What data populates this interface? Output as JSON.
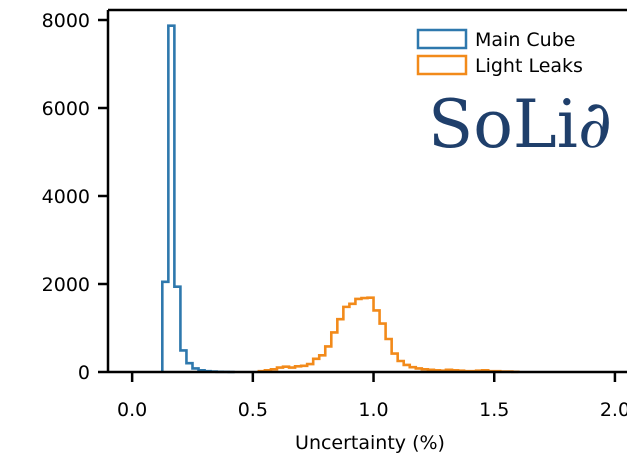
{
  "colors": {
    "main_cube": "#2e78ad",
    "light_leaks": "#f28a1a",
    "logo": "#1f3f6b",
    "axes": "#000000",
    "background": "#ffffff"
  },
  "logo": {
    "text": "SoLi∂"
  },
  "chart_data": {
    "type": "histogram",
    "xlabel": "Uncertainty (%)",
    "ylabel": "",
    "xlim": [
      -0.1,
      2.05
    ],
    "ylim": [
      0,
      8250
    ],
    "xticks": [
      0.0,
      0.5,
      1.0,
      1.5,
      2.0
    ],
    "xtick_labels": [
      "0.0",
      "0.5",
      "1.0",
      "1.5",
      "2.0"
    ],
    "yticks": [
      0,
      2000,
      4000,
      6000,
      8000
    ],
    "ytick_labels": [
      "0",
      "2000",
      "4000",
      "6000",
      "8000"
    ],
    "grid": false,
    "legend_position": "top-right",
    "series": [
      {
        "name": "Main Cube",
        "color": "#2e78ad",
        "bin_edges": [
          0.125,
          0.15,
          0.175,
          0.2,
          0.225,
          0.25,
          0.275,
          0.3,
          0.325,
          0.35,
          0.375,
          0.4,
          0.425
        ],
        "counts": [
          2050,
          7870,
          1940,
          490,
          200,
          80,
          40,
          20,
          10,
          5,
          3,
          0
        ]
      },
      {
        "name": "Light Leaks",
        "color": "#f28a1a",
        "bin_edges": [
          0.525,
          0.55,
          0.575,
          0.6,
          0.625,
          0.65,
          0.675,
          0.7,
          0.725,
          0.75,
          0.775,
          0.8,
          0.825,
          0.85,
          0.875,
          0.9,
          0.925,
          0.95,
          0.975,
          1.0,
          1.025,
          1.05,
          1.075,
          1.1,
          1.125,
          1.15,
          1.175,
          1.2,
          1.225,
          1.25,
          1.275,
          1.3,
          1.325,
          1.35,
          1.375,
          1.4,
          1.425,
          1.45,
          1.475,
          1.5,
          1.525,
          1.55,
          1.575,
          1.6
        ],
        "counts": [
          20,
          40,
          60,
          100,
          120,
          100,
          130,
          140,
          180,
          300,
          380,
          580,
          900,
          1200,
          1480,
          1550,
          1660,
          1680,
          1690,
          1400,
          1100,
          750,
          420,
          250,
          160,
          110,
          80,
          60,
          50,
          40,
          30,
          50,
          40,
          30,
          20,
          20,
          30,
          40,
          20,
          20,
          10,
          10,
          5
        ]
      }
    ]
  }
}
